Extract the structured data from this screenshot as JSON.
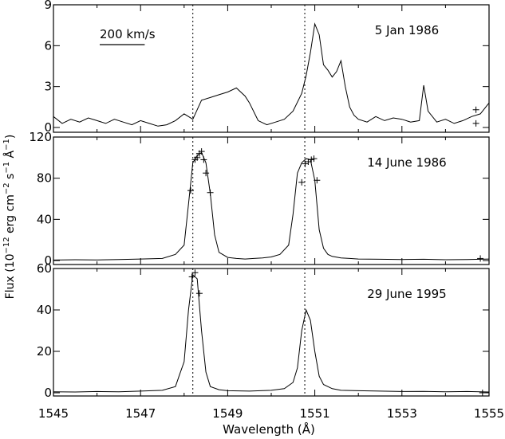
{
  "chart_data": {
    "type": "line",
    "xlabel": "Wavelength (Å)",
    "ylabel_parts": [
      "Flux (10",
      "−12",
      " erg cm",
      "−2",
      " s",
      "−1",
      " Å",
      "−1",
      ")"
    ],
    "xlim": [
      1545,
      1555
    ],
    "xticks": [
      1545,
      1547,
      1549,
      1551,
      1553,
      1555
    ],
    "xtick_labels": [
      "1545",
      "1547",
      "1549",
      "1551",
      "1553",
      "1555"
    ],
    "reference_lines": [
      1548.2,
      1550.77
    ],
    "scale_bar_label": "200 km/s",
    "scale_bar_kms": 200,
    "panels": [
      {
        "date": "5 Jan 1986",
        "ylim": [
          0,
          9
        ],
        "yticks": [
          0,
          3,
          6,
          9
        ],
        "ytick_labels": [
          "0",
          "3",
          "6",
          "9"
        ],
        "x": [
          1545.0,
          1545.2,
          1545.4,
          1545.6,
          1545.8,
          1546.0,
          1546.2,
          1546.4,
          1546.6,
          1546.8,
          1547.0,
          1547.2,
          1547.4,
          1547.6,
          1547.8,
          1548.0,
          1548.2,
          1548.4,
          1548.6,
          1548.8,
          1549.0,
          1549.2,
          1549.4,
          1549.5,
          1549.7,
          1549.9,
          1550.1,
          1550.3,
          1550.5,
          1550.7,
          1550.8,
          1550.9,
          1551.0,
          1551.1,
          1551.2,
          1551.3,
          1551.4,
          1551.5,
          1551.6,
          1551.7,
          1551.8,
          1551.9,
          1552.0,
          1552.2,
          1552.4,
          1552.6,
          1552.8,
          1553.0,
          1553.2,
          1553.4,
          1553.5,
          1553.6,
          1553.8,
          1554.0,
          1554.2,
          1554.4,
          1554.6,
          1554.8,
          1555.0
        ],
        "y": [
          0.8,
          0.3,
          0.6,
          0.4,
          0.7,
          0.5,
          0.3,
          0.6,
          0.4,
          0.2,
          0.5,
          0.3,
          0.1,
          0.2,
          0.5,
          1.0,
          0.6,
          2.0,
          2.2,
          2.4,
          2.6,
          2.9,
          2.3,
          1.8,
          0.5,
          0.2,
          0.4,
          0.6,
          1.2,
          2.5,
          3.8,
          5.5,
          7.6,
          6.8,
          4.6,
          4.2,
          3.7,
          4.1,
          4.9,
          3.0,
          1.5,
          0.9,
          0.6,
          0.4,
          0.8,
          0.5,
          0.7,
          0.6,
          0.4,
          0.5,
          3.1,
          1.2,
          0.4,
          0.6,
          0.3,
          0.5,
          0.8,
          1.0,
          1.8
        ]
      },
      {
        "date": "14 June 1986",
        "ylim": [
          0,
          120
        ],
        "yticks": [
          0,
          40,
          80,
          120
        ],
        "ytick_labels": [
          "0",
          "40",
          "80",
          "120"
        ],
        "x": [
          1545.0,
          1545.5,
          1546.0,
          1546.5,
          1547.0,
          1547.5,
          1547.8,
          1548.0,
          1548.1,
          1548.2,
          1548.3,
          1548.4,
          1548.5,
          1548.6,
          1548.7,
          1548.8,
          1549.0,
          1549.2,
          1549.4,
          1549.6,
          1549.8,
          1550.0,
          1550.2,
          1550.4,
          1550.5,
          1550.6,
          1550.7,
          1550.8,
          1550.9,
          1551.0,
          1551.1,
          1551.2,
          1551.3,
          1551.4,
          1551.6,
          1551.8,
          1552.0,
          1552.5,
          1553.0,
          1553.5,
          1554.0,
          1554.5,
          1555.0
        ],
        "y": [
          0.5,
          0.8,
          0.6,
          1.0,
          1.5,
          2.0,
          6,
          15,
          55,
          95,
          102,
          105,
          95,
          65,
          25,
          8,
          3,
          2,
          1.5,
          2,
          2.5,
          3.5,
          6,
          15,
          45,
          85,
          95,
          99,
          98,
          78,
          30,
          12,
          6,
          4,
          2.5,
          2,
          1.5,
          1.2,
          1,
          1.2,
          0.8,
          1.0,
          1.5
        ]
      },
      {
        "date": "29 June 1995",
        "ylim": [
          0,
          60
        ],
        "yticks": [
          0,
          20,
          40,
          60
        ],
        "ytick_labels": [
          "0",
          "20",
          "40",
          "60"
        ],
        "x": [
          1545.0,
          1545.5,
          1546.0,
          1546.5,
          1547.0,
          1547.5,
          1547.8,
          1547.9,
          1548.0,
          1548.1,
          1548.2,
          1548.3,
          1548.4,
          1548.5,
          1548.6,
          1548.8,
          1549.0,
          1549.5,
          1550.0,
          1550.3,
          1550.5,
          1550.6,
          1550.7,
          1550.8,
          1550.9,
          1551.0,
          1551.1,
          1551.2,
          1551.4,
          1551.6,
          1552.0,
          1552.5,
          1553.0,
          1553.5,
          1554.0,
          1554.5,
          1555.0
        ],
        "y": [
          0.5,
          0.4,
          0.6,
          0.5,
          0.8,
          1.2,
          3,
          9,
          15,
          40,
          57,
          55,
          30,
          10,
          3,
          1.5,
          1.0,
          0.8,
          1.2,
          2,
          5,
          12,
          30,
          40,
          35,
          20,
          8,
          4,
          2,
          1.2,
          1,
          0.8,
          0.6,
          0.7,
          0.5,
          0.6,
          0.4
        ]
      }
    ],
    "markers": [
      [
        {
          "x": 1554.7,
          "y": 1.3
        },
        {
          "x": 1554.7,
          "y": 0.3
        }
      ],
      [
        {
          "x": 1548.15,
          "y": 68
        },
        {
          "x": 1548.25,
          "y": 98
        },
        {
          "x": 1548.3,
          "y": 100
        },
        {
          "x": 1548.35,
          "y": 104
        },
        {
          "x": 1548.4,
          "y": 106
        },
        {
          "x": 1548.45,
          "y": 98
        },
        {
          "x": 1548.5,
          "y": 85
        },
        {
          "x": 1548.6,
          "y": 66
        },
        {
          "x": 1550.7,
          "y": 76
        },
        {
          "x": 1550.78,
          "y": 94
        },
        {
          "x": 1550.85,
          "y": 96
        },
        {
          "x": 1550.92,
          "y": 98
        },
        {
          "x": 1550.98,
          "y": 99
        },
        {
          "x": 1551.05,
          "y": 78
        },
        {
          "x": 1554.8,
          "y": 2
        }
      ],
      [
        {
          "x": 1548.18,
          "y": 56
        },
        {
          "x": 1548.25,
          "y": 58
        },
        {
          "x": 1548.35,
          "y": 48
        },
        {
          "x": 1554.85,
          "y": 0
        }
      ]
    ]
  }
}
